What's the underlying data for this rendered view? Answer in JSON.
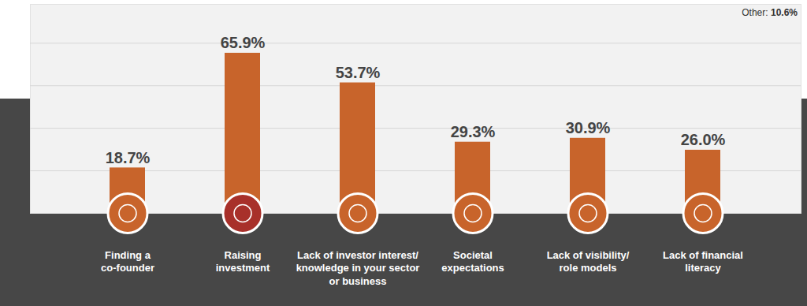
{
  "chart_data": {
    "type": "bar",
    "categories": [
      "Finding a\nco-founder",
      "Raising\ninvestment",
      "Lack of investor interest/\nknowledge in your sector\nor business",
      "Societal\nexpectations",
      "Lack of visibility/\nrole models",
      "Lack of financial\nliteracy"
    ],
    "values": [
      18.7,
      65.9,
      53.7,
      29.3,
      30.9,
      26.0
    ],
    "value_labels": [
      "18.7%",
      "65.9%",
      "53.7%",
      "29.3%",
      "30.9%",
      "26.0%"
    ],
    "color": "#c8642b",
    "ylim": [
      0,
      86
    ],
    "yticks": [
      17.5,
      35,
      52.5,
      70
    ],
    "grid": true,
    "tick_labels": "x",
    "data_labels": true,
    "annotation": {
      "label": "Other:",
      "value_label": "10.6%"
    }
  }
}
